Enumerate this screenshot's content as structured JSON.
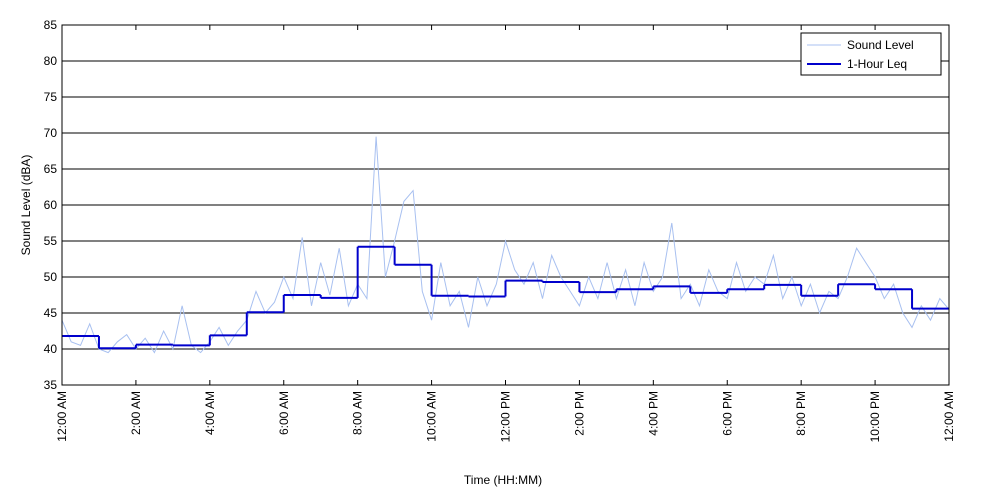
{
  "chart_data": {
    "type": "line",
    "xlabel": "Time (HH:MM)",
    "ylabel": "Sound Level (dBA)",
    "xlim": [
      0,
      24
    ],
    "ylim": [
      35,
      85
    ],
    "xticks": [
      {
        "value": 0,
        "label": "12:00 AM"
      },
      {
        "value": 2,
        "label": "2:00 AM"
      },
      {
        "value": 4,
        "label": "4:00 AM"
      },
      {
        "value": 6,
        "label": "6:00 AM"
      },
      {
        "value": 8,
        "label": "8:00 AM"
      },
      {
        "value": 10,
        "label": "10:00 AM"
      },
      {
        "value": 12,
        "label": "12:00 PM"
      },
      {
        "value": 14,
        "label": "2:00 PM"
      },
      {
        "value": 16,
        "label": "4:00 PM"
      },
      {
        "value": 18,
        "label": "6:00 PM"
      },
      {
        "value": 20,
        "label": "8:00 PM"
      },
      {
        "value": 22,
        "label": "10:00 PM"
      },
      {
        "value": 24,
        "label": "12:00 AM"
      }
    ],
    "yticks": [
      35,
      40,
      45,
      50,
      55,
      60,
      65,
      70,
      75,
      80,
      85
    ],
    "grid": true,
    "legend": "upper right",
    "series": [
      {
        "name": "Sound Level",
        "color": "#a8c0f0",
        "drawstyle": "default",
        "x": [
          0,
          0.25,
          0.5,
          0.75,
          1,
          1.25,
          1.5,
          1.75,
          2,
          2.25,
          2.5,
          2.75,
          3,
          3.25,
          3.5,
          3.75,
          4,
          4.25,
          4.5,
          4.75,
          5,
          5.25,
          5.5,
          5.75,
          6,
          6.25,
          6.5,
          6.75,
          7,
          7.25,
          7.5,
          7.75,
          8,
          8.25,
          8.5,
          8.75,
          9,
          9.25,
          9.5,
          9.75,
          10,
          10.25,
          10.5,
          10.75,
          11,
          11.25,
          11.5,
          11.75,
          12,
          12.25,
          12.5,
          12.75,
          13,
          13.25,
          13.5,
          13.75,
          14,
          14.25,
          14.5,
          14.75,
          15,
          15.25,
          15.5,
          15.75,
          16,
          16.25,
          16.5,
          16.75,
          17,
          17.25,
          17.5,
          17.75,
          18,
          18.25,
          18.5,
          18.75,
          19,
          19.25,
          19.5,
          19.75,
          20,
          20.25,
          20.5,
          20.75,
          21,
          21.25,
          21.5,
          21.75,
          22,
          22.25,
          22.5,
          22.75,
          23,
          23.25,
          23.5,
          23.75,
          24
        ],
        "values": [
          44,
          41,
          40.5,
          43.5,
          40,
          39.5,
          41,
          42,
          40,
          41.5,
          39.5,
          42.5,
          40,
          46,
          40.5,
          39.5,
          41,
          43,
          40.5,
          42.5,
          44,
          48,
          45,
          46.5,
          50,
          47,
          55.5,
          46,
          52,
          47.5,
          54,
          46,
          49,
          47,
          69.5,
          50,
          55,
          60.5,
          62,
          48,
          44,
          52,
          46,
          48,
          43,
          50,
          46,
          49,
          55,
          51,
          49,
          52,
          47,
          53,
          50,
          48,
          46,
          50,
          47,
          52,
          47,
          51,
          46,
          52,
          48,
          50,
          57.5,
          47,
          49,
          46,
          51,
          48,
          47,
          52,
          48,
          50,
          49,
          53,
          47,
          50,
          46,
          49,
          45,
          48,
          47,
          50,
          54,
          52,
          50,
          47,
          49,
          45,
          43,
          46,
          44,
          47,
          45.5
        ]
      },
      {
        "name": "1-Hour Leq",
        "color": "#0000cc",
        "drawstyle": "steps-post",
        "x": [
          0,
          1,
          2,
          3,
          4,
          5,
          6,
          7,
          8,
          9,
          10,
          11,
          12,
          13,
          14,
          15,
          16,
          17,
          18,
          19,
          20,
          21,
          22,
          23
        ],
        "values": [
          41.8,
          40.1,
          40.6,
          40.5,
          41.9,
          45.1,
          47.5,
          47.1,
          54.2,
          51.7,
          47.4,
          47.3,
          49.5,
          49.3,
          47.9,
          48.3,
          48.7,
          47.8,
          48.3,
          48.9,
          47.4,
          49.0,
          48.3,
          45.6
        ]
      }
    ]
  }
}
